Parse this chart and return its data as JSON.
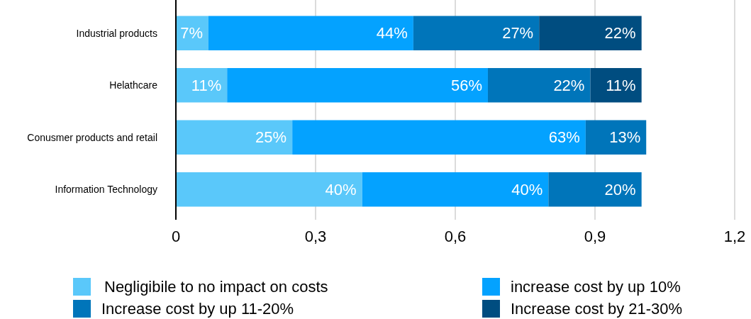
{
  "chart_data": {
    "type": "bar",
    "orientation": "horizontal",
    "stacked": true,
    "categories": [
      "Industrial products",
      "Helathcare",
      "Conusmer products and retail",
      "Information Technology"
    ],
    "series": [
      {
        "name": "Negligibile to no impact on costs",
        "color": "#5ac8fa",
        "values": [
          0.07,
          0.11,
          0.25,
          0.4
        ],
        "value_labels": [
          "7%",
          "11%",
          "25%",
          "40%"
        ]
      },
      {
        "name": "increase cost by up 10%",
        "color": "#04a2ff",
        "values": [
          0.44,
          0.56,
          0.63,
          0.4
        ],
        "value_labels": [
          "44%",
          "56%",
          "63%",
          "40%"
        ]
      },
      {
        "name": "Increase cost by up 11-20%",
        "color": "#0075ba",
        "values": [
          0.27,
          0.22,
          0.13,
          0.2
        ],
        "value_labels": [
          "27%",
          "22%",
          "13%",
          "20%"
        ]
      },
      {
        "name": "Increase cost by 21-30%",
        "color": "#004d80",
        "values": [
          0.22,
          0.11,
          null,
          null
        ],
        "value_labels": [
          "22%",
          "11%",
          null,
          null
        ]
      }
    ],
    "xlim": [
      0,
      1.2
    ],
    "xticks": [
      0,
      {
        "value": 0.3,
        "label": "0,3"
      },
      {
        "value": 0.6,
        "label": "0,6"
      },
      {
        "value": 0.9,
        "label": "0,9"
      },
      {
        "value": 1.2,
        "label": "1,2"
      }
    ],
    "grid": "x",
    "legend": "bottom"
  }
}
